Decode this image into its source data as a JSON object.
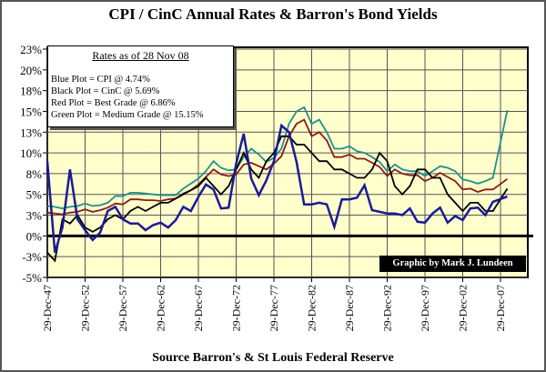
{
  "chart_data": {
    "type": "line",
    "title": "CPI / CinC Annual Rates & Barron's Bond Yields",
    "source": "Source Barron's & St Louis Federal Reserve",
    "credit": "Graphic by Mark J. Lundeen",
    "legend": {
      "heading": "Rates as of 28 Nov 08",
      "entries": [
        "Blue Plot = CPI @ 4.74%",
        "Black Plot = CinC @ 5.69%",
        "Red Plot = Best Grade @ 6.86%",
        "Green Plot = Medium Grade @ 15.15%"
      ],
      "placement": "top-left"
    },
    "ylim": [
      -5,
      22.5
    ],
    "y_ticks": [
      -5,
      -2.5,
      0,
      2.5,
      5,
      7.5,
      10,
      12.5,
      15,
      17.5,
      20,
      22.5
    ],
    "y_tick_labels": [
      "-5%",
      "-3%",
      "0%",
      "3%",
      "5%",
      "8%",
      "10%",
      "13%",
      "15%",
      "18%",
      "20%",
      "23%"
    ],
    "x_tick_labels": [
      "29-Dec-47",
      "29-Dec-52",
      "29-Dec-57",
      "29-Dec-62",
      "29-Dec-67",
      "29-Dec-72",
      "29-Dec-77",
      "29-Dec-82",
      "29-Dec-87",
      "29-Dec-92",
      "29-Dec-97",
      "29-Dec-02",
      "29-Dec-07"
    ],
    "grid": true,
    "background": "#ffffcc",
    "x": [
      1948,
      1949,
      1950,
      1951,
      1952,
      1953,
      1954,
      1955,
      1956,
      1957,
      1958,
      1959,
      1960,
      1961,
      1962,
      1963,
      1964,
      1965,
      1966,
      1967,
      1968,
      1969,
      1970,
      1971,
      1972,
      1973,
      1974,
      1975,
      1976,
      1977,
      1978,
      1979,
      1980,
      1981,
      1982,
      1983,
      1984,
      1985,
      1986,
      1987,
      1988,
      1989,
      1990,
      1991,
      1992,
      1993,
      1994,
      1995,
      1996,
      1997,
      1998,
      1999,
      2000,
      2001,
      2002,
      2003,
      2004,
      2005,
      2006,
      2007,
      2008.9
    ],
    "series": [
      {
        "name": "CPI",
        "color": "#1a1a99",
        "values": [
          9,
          -2,
          1,
          8,
          2,
          0.7,
          -0.5,
          0.4,
          3,
          3.5,
          2,
          1.5,
          1.5,
          0.7,
          1.3,
          1.6,
          1,
          1.9,
          3.5,
          3,
          4.7,
          6.2,
          5.6,
          3.3,
          3.4,
          8.7,
          12.3,
          6.9,
          4.9,
          6.7,
          9,
          13.3,
          12.5,
          8.9,
          3.8,
          3.8,
          4,
          3.8,
          1.1,
          4.4,
          4.4,
          4.6,
          6.1,
          3.1,
          2.9,
          2.7,
          2.7,
          2.5,
          3.3,
          1.7,
          1.6,
          2.7,
          3.4,
          1.6,
          2.4,
          1.9,
          3.3,
          3.4,
          2.5,
          4.1,
          4.74
        ]
      },
      {
        "name": "CinC",
        "color": "#000000",
        "values": [
          -2,
          -3,
          2,
          1.5,
          2.5,
          1,
          0.5,
          1,
          2,
          2.5,
          2,
          3,
          3.5,
          3,
          3.5,
          4,
          4,
          4.5,
          5,
          5.5,
          6,
          7,
          6,
          5,
          6,
          8,
          10,
          8,
          7,
          9,
          10,
          12,
          12,
          11,
          11,
          10,
          9,
          9,
          8,
          8,
          7.5,
          7,
          7,
          8,
          10,
          9,
          6,
          5,
          6,
          8,
          8,
          7,
          7,
          5,
          4,
          3,
          4,
          4,
          3,
          3,
          5.69
        ]
      },
      {
        "name": "Best Grade",
        "color": "#8b1a1a",
        "values": [
          2.8,
          2.7,
          2.6,
          2.8,
          2.9,
          3.2,
          2.9,
          3.1,
          3.4,
          3.9,
          3.8,
          4.4,
          4.4,
          4.3,
          4.3,
          4.2,
          4.4,
          4.5,
          5.1,
          5.5,
          6.2,
          7.1,
          8,
          7.4,
          7.2,
          7.4,
          8.6,
          8.8,
          8.4,
          8,
          8.7,
          9.6,
          12,
          13.5,
          14,
          12,
          12.5,
          11.5,
          9.5,
          9.5,
          9.8,
          9.3,
          9.3,
          8.8,
          8.3,
          7.2,
          8,
          7.5,
          7.3,
          7.3,
          6.6,
          7,
          7.6,
          7.1,
          6.6,
          5.6,
          5.7,
          5.3,
          5.6,
          5.6,
          6.86
        ]
      },
      {
        "name": "Medium Grade",
        "color": "#1f8f8f",
        "values": [
          3.6,
          3.5,
          3.3,
          3.5,
          3.6,
          3.9,
          3.6,
          3.7,
          4,
          4.8,
          4.8,
          5.2,
          5.2,
          5.1,
          5,
          4.9,
          4.9,
          4.9,
          5.7,
          6.3,
          6.9,
          7.8,
          9,
          8.2,
          7.9,
          8,
          9.5,
          10.5,
          9.8,
          8.9,
          9.4,
          10.5,
          13.5,
          15,
          15.5,
          13.5,
          14,
          12.5,
          10.5,
          10.5,
          10.8,
          10.2,
          10,
          9.5,
          8.9,
          7.8,
          8.6,
          8,
          7.8,
          7.8,
          7.2,
          7.8,
          8.4,
          8.2,
          7.8,
          6.8,
          6.6,
          6.3,
          6.6,
          7,
          15.15
        ]
      }
    ]
  }
}
